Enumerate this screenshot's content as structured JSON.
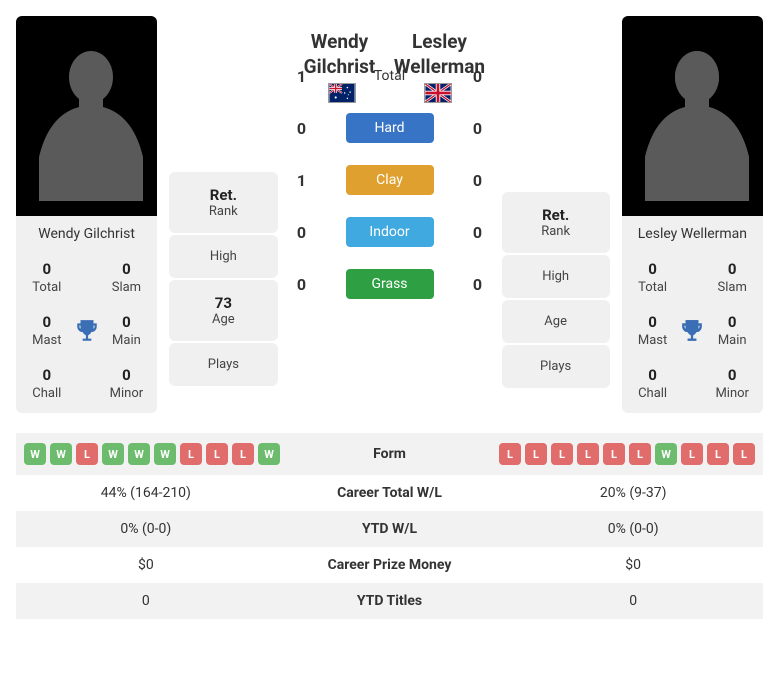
{
  "colors": {
    "win": "#6dbb6d",
    "loss": "#e06c6c",
    "hard": "#3874c6",
    "clay": "#e0a030",
    "indoor": "#3fa9e0",
    "grass": "#2ea043",
    "trophy": "#3b6fb5",
    "silhouette": "#5a5a5a"
  },
  "player1": {
    "name": "Wendy Gilchrist",
    "flag": "au",
    "stats": {
      "total": {
        "val": "0",
        "lbl": "Total"
      },
      "slam": {
        "val": "0",
        "lbl": "Slam"
      },
      "mast": {
        "val": "0",
        "lbl": "Mast"
      },
      "main": {
        "val": "0",
        "lbl": "Main"
      },
      "chall": {
        "val": "0",
        "lbl": "Chall"
      },
      "minor": {
        "val": "0",
        "lbl": "Minor"
      }
    },
    "info": {
      "rank": {
        "val": "Ret.",
        "lbl": "Rank"
      },
      "high": {
        "val": "",
        "lbl": "High"
      },
      "age": {
        "val": "73",
        "lbl": "Age"
      },
      "plays": {
        "val": "",
        "lbl": "Plays"
      }
    }
  },
  "player2": {
    "name": "Lesley Wellerman",
    "flag": "gb",
    "stats": {
      "total": {
        "val": "0",
        "lbl": "Total"
      },
      "slam": {
        "val": "0",
        "lbl": "Slam"
      },
      "mast": {
        "val": "0",
        "lbl": "Mast"
      },
      "main": {
        "val": "0",
        "lbl": "Main"
      },
      "chall": {
        "val": "0",
        "lbl": "Chall"
      },
      "minor": {
        "val": "0",
        "lbl": "Minor"
      }
    },
    "info": {
      "rank": {
        "val": "Ret.",
        "lbl": "Rank"
      },
      "high": {
        "val": "",
        "lbl": "High"
      },
      "age": {
        "val": "",
        "lbl": "Age"
      },
      "plays": {
        "val": "",
        "lbl": "Plays"
      }
    }
  },
  "h2h": {
    "total": {
      "p1": "1",
      "label": "Total",
      "p2": "0"
    },
    "hard": {
      "p1": "0",
      "label": "Hard",
      "p2": "0",
      "colorKey": "hard"
    },
    "clay": {
      "p1": "1",
      "label": "Clay",
      "p2": "0",
      "colorKey": "clay"
    },
    "indoor": {
      "p1": "0",
      "label": "Indoor",
      "p2": "0",
      "colorKey": "indoor"
    },
    "grass": {
      "p1": "0",
      "label": "Grass",
      "p2": "0",
      "colorKey": "grass"
    }
  },
  "compare": [
    {
      "key": "form",
      "label": "Form",
      "p1_form": [
        "W",
        "W",
        "L",
        "W",
        "W",
        "W",
        "L",
        "L",
        "L",
        "W"
      ],
      "p2_form": [
        "L",
        "L",
        "L",
        "L",
        "L",
        "L",
        "W",
        "L",
        "L",
        "L"
      ]
    },
    {
      "key": "career_wl",
      "label": "Career Total W/L",
      "p1": "44% (164-210)",
      "p2": "20% (9-37)"
    },
    {
      "key": "ytd_wl",
      "label": "YTD W/L",
      "p1": "0% (0-0)",
      "p2": "0% (0-0)"
    },
    {
      "key": "prize",
      "label": "Career Prize Money",
      "p1": "$0",
      "p2": "$0"
    },
    {
      "key": "ytd_titles",
      "label": "YTD Titles",
      "p1": "0",
      "p2": "0"
    }
  ]
}
